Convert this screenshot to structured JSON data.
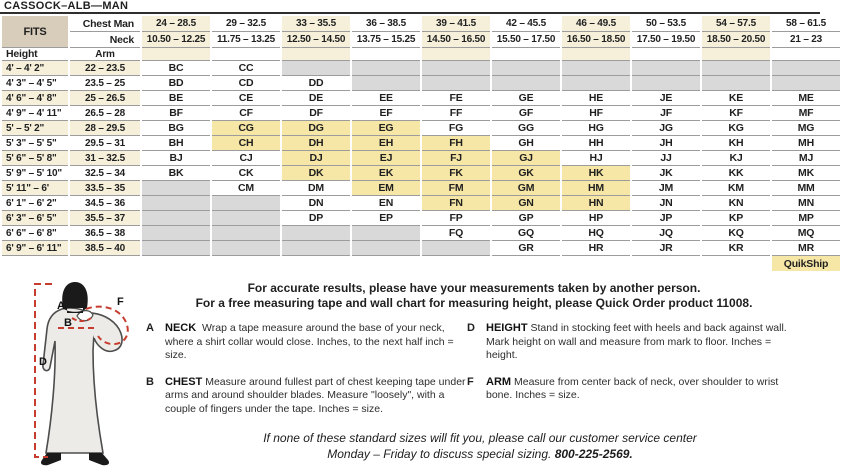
{
  "title": "CASSOCK–ALB—MAN",
  "colors": {
    "cream": "#f6f0db",
    "fits_tan": "#d8cdbb",
    "quikship_yellow": "#f6e7a6",
    "unavailable_gray": "#d9d9d9",
    "measure_dash_red": "#c63d2f"
  },
  "table": {
    "fits_label": "FITS",
    "chest_label": "Chest Man",
    "neck_label": "Neck",
    "height_label": "Height",
    "arm_label": "Arm",
    "quikship_label": "QuikShip",
    "cell_status_legend": {
      "a": "available",
      "q": "quikship",
      "n": "not-available"
    },
    "columns": [
      {
        "chest": "24 – 28.5",
        "neck": "10.50 – 12.25"
      },
      {
        "chest": "29 – 32.5",
        "neck": "11.75 – 13.25"
      },
      {
        "chest": "33 – 35.5",
        "neck": "12.50 – 14.50"
      },
      {
        "chest": "36 – 38.5",
        "neck": "13.75 – 15.25"
      },
      {
        "chest": "39 – 41.5",
        "neck": "14.50 – 16.50"
      },
      {
        "chest": "42 – 45.5",
        "neck": "15.50 – 17.50"
      },
      {
        "chest": "46 – 49.5",
        "neck": "16.50 – 18.50"
      },
      {
        "chest": "50 – 53.5",
        "neck": "17.50 – 19.50"
      },
      {
        "chest": "54 – 57.5",
        "neck": "18.50 – 20.50"
      },
      {
        "chest": "58 – 61.5",
        "neck": "21 – 23"
      }
    ],
    "rows": [
      {
        "height": "4' – 4' 2\"",
        "arm": "22 – 23.5",
        "cells": [
          [
            "BC",
            "a"
          ],
          [
            "CC",
            "a"
          ],
          [
            "",
            "n"
          ],
          [
            "",
            "n"
          ],
          [
            "",
            "n"
          ],
          [
            "",
            "n"
          ],
          [
            "",
            "n"
          ],
          [
            "",
            "n"
          ],
          [
            "",
            "n"
          ],
          [
            "",
            "n"
          ]
        ]
      },
      {
        "height": "4' 3\" – 4' 5\"",
        "arm": "23.5 – 25",
        "cells": [
          [
            "BD",
            "a"
          ],
          [
            "CD",
            "a"
          ],
          [
            "DD",
            "a"
          ],
          [
            "",
            "n"
          ],
          [
            "",
            "n"
          ],
          [
            "",
            "n"
          ],
          [
            "",
            "n"
          ],
          [
            "",
            "n"
          ],
          [
            "",
            "n"
          ],
          [
            "",
            "n"
          ]
        ]
      },
      {
        "height": "4' 6\" – 4' 8\"",
        "arm": "25 – 26.5",
        "cells": [
          [
            "BE",
            "a"
          ],
          [
            "CE",
            "a"
          ],
          [
            "DE",
            "a"
          ],
          [
            "EE",
            "a"
          ],
          [
            "FE",
            "a"
          ],
          [
            "GE",
            "a"
          ],
          [
            "HE",
            "a"
          ],
          [
            "JE",
            "a"
          ],
          [
            "KE",
            "a"
          ],
          [
            "ME",
            "a"
          ]
        ]
      },
      {
        "height": "4' 9\" – 4' 11\"",
        "arm": "26.5 – 28",
        "cells": [
          [
            "BF",
            "a"
          ],
          [
            "CF",
            "a"
          ],
          [
            "DF",
            "a"
          ],
          [
            "EF",
            "a"
          ],
          [
            "FF",
            "a"
          ],
          [
            "GF",
            "a"
          ],
          [
            "HF",
            "a"
          ],
          [
            "JF",
            "a"
          ],
          [
            "KF",
            "a"
          ],
          [
            "MF",
            "a"
          ]
        ]
      },
      {
        "height": "5' – 5' 2\"",
        "arm": "28 – 29.5",
        "cells": [
          [
            "BG",
            "a"
          ],
          [
            "CG",
            "q"
          ],
          [
            "DG",
            "q"
          ],
          [
            "EG",
            "q"
          ],
          [
            "FG",
            "a"
          ],
          [
            "GG",
            "a"
          ],
          [
            "HG",
            "a"
          ],
          [
            "JG",
            "a"
          ],
          [
            "KG",
            "a"
          ],
          [
            "MG",
            "a"
          ]
        ]
      },
      {
        "height": "5' 3\" – 5' 5\"",
        "arm": "29.5 – 31",
        "cells": [
          [
            "BH",
            "a"
          ],
          [
            "CH",
            "q"
          ],
          [
            "DH",
            "q"
          ],
          [
            "EH",
            "q"
          ],
          [
            "FH",
            "q"
          ],
          [
            "GH",
            "a"
          ],
          [
            "HH",
            "a"
          ],
          [
            "JH",
            "a"
          ],
          [
            "KH",
            "a"
          ],
          [
            "MH",
            "a"
          ]
        ]
      },
      {
        "height": "5' 6\" – 5' 8\"",
        "arm": "31 – 32.5",
        "cells": [
          [
            "BJ",
            "a"
          ],
          [
            "CJ",
            "a"
          ],
          [
            "DJ",
            "q"
          ],
          [
            "EJ",
            "q"
          ],
          [
            "FJ",
            "q"
          ],
          [
            "GJ",
            "q"
          ],
          [
            "HJ",
            "a"
          ],
          [
            "JJ",
            "a"
          ],
          [
            "KJ",
            "a"
          ],
          [
            "MJ",
            "a"
          ]
        ]
      },
      {
        "height": "5' 9\" – 5' 10\"",
        "arm": "32.5 – 34",
        "cells": [
          [
            "BK",
            "a"
          ],
          [
            "CK",
            "a"
          ],
          [
            "DK",
            "q"
          ],
          [
            "EK",
            "q"
          ],
          [
            "FK",
            "q"
          ],
          [
            "GK",
            "q"
          ],
          [
            "HK",
            "q"
          ],
          [
            "JK",
            "a"
          ],
          [
            "KK",
            "a"
          ],
          [
            "MK",
            "a"
          ]
        ]
      },
      {
        "height": "5' 11\" – 6'",
        "arm": "33.5 – 35",
        "cells": [
          [
            "",
            "n"
          ],
          [
            "CM",
            "a"
          ],
          [
            "DM",
            "a"
          ],
          [
            "EM",
            "q"
          ],
          [
            "FM",
            "q"
          ],
          [
            "GM",
            "q"
          ],
          [
            "HM",
            "q"
          ],
          [
            "JM",
            "a"
          ],
          [
            "KM",
            "a"
          ],
          [
            "MM",
            "a"
          ]
        ]
      },
      {
        "height": "6' 1\" – 6' 2\"",
        "arm": "34.5 – 36",
        "cells": [
          [
            "",
            "n"
          ],
          [
            "",
            "n"
          ],
          [
            "DN",
            "a"
          ],
          [
            "EN",
            "a"
          ],
          [
            "FN",
            "q"
          ],
          [
            "GN",
            "q"
          ],
          [
            "HN",
            "q"
          ],
          [
            "JN",
            "a"
          ],
          [
            "KN",
            "a"
          ],
          [
            "MN",
            "a"
          ]
        ]
      },
      {
        "height": "6' 3\" – 6' 5\"",
        "arm": "35.5 – 37",
        "cells": [
          [
            "",
            "n"
          ],
          [
            "",
            "n"
          ],
          [
            "DP",
            "a"
          ],
          [
            "EP",
            "a"
          ],
          [
            "FP",
            "a"
          ],
          [
            "GP",
            "a"
          ],
          [
            "HP",
            "a"
          ],
          [
            "JP",
            "a"
          ],
          [
            "KP",
            "a"
          ],
          [
            "MP",
            "a"
          ]
        ]
      },
      {
        "height": "6' 6\" – 6' 8\"",
        "arm": "36.5 – 38",
        "cells": [
          [
            "",
            "n"
          ],
          [
            "",
            "n"
          ],
          [
            "",
            "n"
          ],
          [
            "",
            "n"
          ],
          [
            "FQ",
            "a"
          ],
          [
            "GQ",
            "a"
          ],
          [
            "HQ",
            "a"
          ],
          [
            "JQ",
            "a"
          ],
          [
            "KQ",
            "a"
          ],
          [
            "MQ",
            "a"
          ]
        ]
      },
      {
        "height": "6' 9\" – 6' 11\"",
        "arm": "38.5 – 40",
        "cells": [
          [
            "",
            "n"
          ],
          [
            "",
            "n"
          ],
          [
            "",
            "n"
          ],
          [
            "",
            "n"
          ],
          [
            "",
            "n"
          ],
          [
            "GR",
            "a"
          ],
          [
            "HR",
            "a"
          ],
          [
            "JR",
            "a"
          ],
          [
            "KR",
            "a"
          ],
          [
            "MR",
            "a"
          ]
        ]
      }
    ]
  },
  "notice": {
    "line1": "For accurate results, please have your measurements taken by another person.",
    "line2": "For a free measuring tape and wall chart for measuring height, please Quick Order product 11008."
  },
  "instructions": [
    {
      "letter": "A",
      "term": "NECK",
      "text": "Wrap a tape measure around the base of your neck, where a shirt collar would close. Inches, to the next half inch = size."
    },
    {
      "letter": "B",
      "term": "CHEST",
      "text": "Measure around fullest part of chest keeping tape under arms and around shoulder blades. Measure \"loosely\", with a couple of fingers under the tape. Inches = size."
    },
    {
      "letter": "D",
      "term": "HEIGHT",
      "text": "Stand in stocking feet with heels and back against wall. Mark height on wall and measure from mark to floor. Inches = height."
    },
    {
      "letter": "F",
      "term": "ARM",
      "text": "Measure from center back of neck, over shoulder to wrist bone. Inches = size."
    }
  ],
  "figure": {
    "labels": {
      "neck": "A",
      "chest": "B",
      "height": "D",
      "arm": "F"
    }
  },
  "footer": {
    "line1": "If none of these standard sizes will fit you, please call our customer service center",
    "line2": "Monday – Friday to discuss special sizing.",
    "phone": "800-225-2569."
  }
}
